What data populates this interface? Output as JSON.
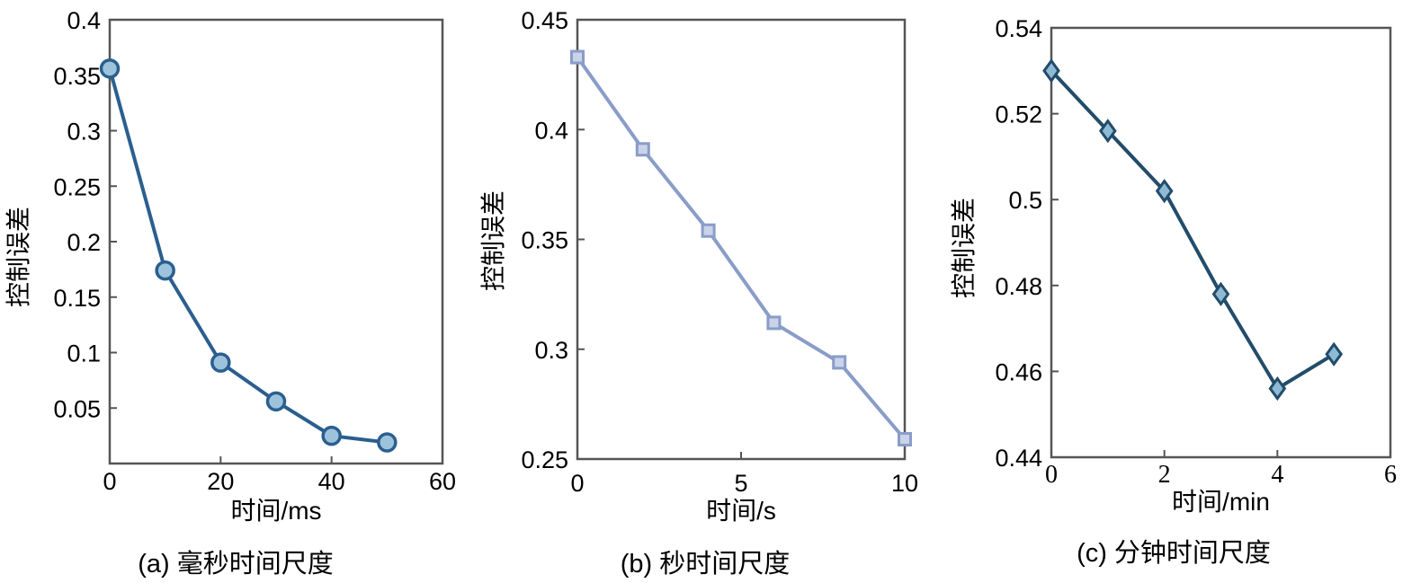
{
  "chart_data": [
    {
      "type": "line",
      "caption": "(a) 毫秒时间尺度",
      "xlabel": "时间/ms",
      "ylabel": "控制误差",
      "xlim": [
        0,
        60
      ],
      "ylim": [
        0,
        0.4
      ],
      "xticks": [
        0,
        20,
        40,
        60
      ],
      "xtick_labels": [
        "0",
        "20",
        "40",
        "60"
      ],
      "yticks": [
        0.05,
        0.1,
        0.15,
        0.2,
        0.25,
        0.3,
        0.35,
        0.4
      ],
      "ytick_labels": [
        "0.05",
        "0.1",
        "0.15",
        "0.2",
        "0.25",
        "0.3",
        "0.35",
        "0.4"
      ],
      "marker": "circle",
      "line_color": "#2a5f8f",
      "marker_fill": "#9dc3dc",
      "grid": false,
      "series": [
        {
          "x": [
            0,
            10,
            20,
            30,
            40,
            50
          ],
          "values": [
            0.356,
            0.174,
            0.091,
            0.056,
            0.025,
            0.019
          ]
        }
      ]
    },
    {
      "type": "line",
      "caption": "(b) 秒时间尺度",
      "xlabel": "时间/s",
      "ylabel": "控制误差",
      "xlim": [
        0,
        10
      ],
      "ylim": [
        0.25,
        0.45
      ],
      "xticks": [
        0,
        5,
        10
      ],
      "xtick_labels": [
        "0",
        "5",
        "10"
      ],
      "yticks": [
        0.25,
        0.3,
        0.35,
        0.4,
        0.45
      ],
      "ytick_labels": [
        "0.25",
        "0.3",
        "0.35",
        "0.4",
        "0.45"
      ],
      "marker": "square",
      "line_color": "#8a9cc8",
      "marker_fill": "#c9d3ea",
      "grid": false,
      "series": [
        {
          "x": [
            0,
            2,
            4,
            6,
            8,
            10
          ],
          "values": [
            0.433,
            0.391,
            0.354,
            0.312,
            0.294,
            0.259
          ]
        }
      ]
    },
    {
      "type": "line",
      "caption": "(c) 分钟时间尺度",
      "xlabel": "时间/min",
      "ylabel": "控制误差",
      "xlim": [
        0,
        6
      ],
      "ylim": [
        0.44,
        0.54
      ],
      "xticks": [
        0,
        2,
        4,
        6
      ],
      "xtick_labels": [
        "0",
        "2",
        "4",
        "6"
      ],
      "yticks": [
        0.44,
        0.46,
        0.48,
        0.5,
        0.52,
        0.54
      ],
      "ytick_labels": [
        "0.44",
        "0.46",
        "0.48",
        "0.5",
        "0.52",
        "0.54"
      ],
      "marker": "diamond",
      "line_color": "#234c6a",
      "marker_fill": "#8fbad6",
      "grid": false,
      "series": [
        {
          "x": [
            0,
            1,
            2,
            3,
            4,
            5
          ],
          "values": [
            0.53,
            0.516,
            0.502,
            0.478,
            0.456,
            0.464
          ]
        }
      ]
    }
  ]
}
